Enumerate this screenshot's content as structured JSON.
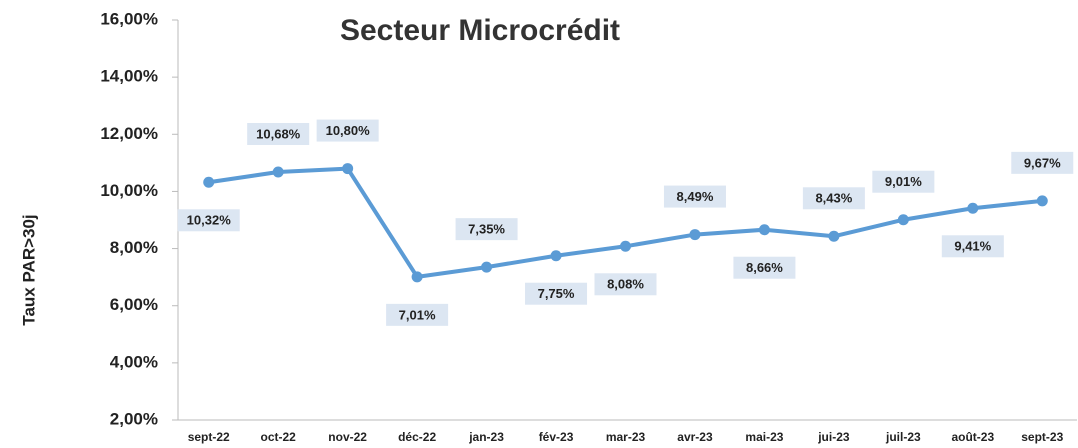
{
  "chart_data": {
    "type": "line",
    "title": "Secteur Microcrédit",
    "y_label": "Taux PAR>30j",
    "categories": [
      "sept-22",
      "oct-22",
      "nov-22",
      "déc-22",
      "jan-23",
      "fév-23",
      "mar-23",
      "avr-23",
      "mai-23",
      "jui-23",
      "juil-23",
      "août-23",
      "sept-23"
    ],
    "series": [
      {
        "name": "Taux PAR>30j",
        "color": "#5b9bd5",
        "values": [
          10.32,
          10.68,
          10.8,
          7.01,
          7.35,
          7.75,
          8.08,
          8.49,
          8.66,
          8.43,
          9.01,
          9.41,
          9.67
        ],
        "value_labels": [
          "10,32%",
          "10,68%",
          "10,80%",
          "7,01%",
          "7,35%",
          "7,75%",
          "8,08%",
          "8,49%",
          "8,66%",
          "8,43%",
          "9,01%",
          "9,41%",
          "9,67%"
        ]
      }
    ],
    "ylim": [
      2,
      16
    ],
    "yticks": [
      {
        "value": 2,
        "label": "2,00%"
      },
      {
        "value": 4,
        "label": "4,00%"
      },
      {
        "value": 6,
        "label": "6,00%"
      },
      {
        "value": 8,
        "label": "8,00%"
      },
      {
        "value": 10,
        "label": "10,00%"
      },
      {
        "value": 12,
        "label": "12,00%"
      },
      {
        "value": 14,
        "label": "14,00%"
      },
      {
        "value": 16,
        "label": "16,00%"
      }
    ]
  }
}
